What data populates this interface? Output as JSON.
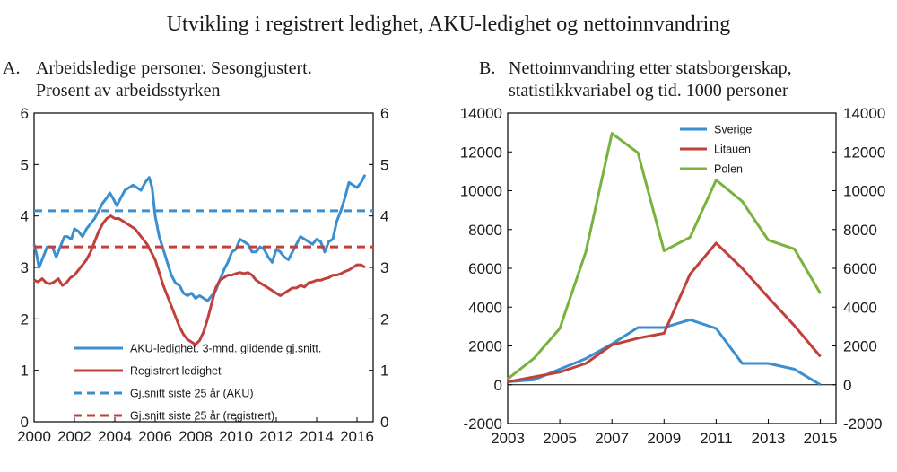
{
  "title": "Utvikling i registrert ledighet, AKU-ledighet og nettoinnvandring",
  "colors": {
    "blue": "#3a8fd0",
    "red": "#c0413b",
    "green": "#79b33e"
  },
  "chart_data": [
    {
      "type": "line",
      "label": "A.",
      "title_lines": [
        "Arbeidsledige personer. Sesongjustert.",
        "Prosent av arbeidsstyrken"
      ],
      "x_tick_labels": [
        "2000",
        "2002",
        "2004",
        "2006",
        "2008",
        "2010",
        "2012",
        "2014",
        "2016"
      ],
      "x_tick_values": [
        2000,
        2002,
        2004,
        2006,
        2008,
        2010,
        2012,
        2014,
        2016
      ],
      "xlim": [
        2000,
        2016.8
      ],
      "ylim": [
        0,
        6
      ],
      "left_y_tick_labels": [
        "0",
        "1",
        "2",
        "3",
        "4",
        "5",
        "6"
      ],
      "right_y_tick_labels": [
        "0",
        "1",
        "2",
        "3",
        "4",
        "5",
        "6"
      ],
      "y_tick_values": [
        0,
        1,
        2,
        3,
        4,
        5,
        6
      ],
      "legend_position": "bottom-center",
      "series": [
        {
          "name": "AKU-ledighet. 3-mnd. glidende gj.snitt.",
          "color_key": "blue",
          "dash": false,
          "x": [
            2000.0,
            2000.1,
            2000.25,
            2000.45,
            2000.65,
            2000.9,
            2001.1,
            2001.3,
            2001.5,
            2001.65,
            2001.85,
            2002.0,
            2002.2,
            2002.4,
            2002.6,
            2002.8,
            2003.0,
            2003.2,
            2003.4,
            2003.6,
            2003.75,
            2003.9,
            2004.1,
            2004.3,
            2004.5,
            2004.7,
            2004.9,
            2005.1,
            2005.3,
            2005.5,
            2005.7,
            2005.85,
            2006.0,
            2006.2,
            2006.4,
            2006.6,
            2006.8,
            2007.0,
            2007.2,
            2007.4,
            2007.6,
            2007.8,
            2008.0,
            2008.2,
            2008.4,
            2008.6,
            2008.8,
            2009.0,
            2009.2,
            2009.4,
            2009.6,
            2009.8,
            2010.0,
            2010.2,
            2010.4,
            2010.6,
            2010.8,
            2011.0,
            2011.2,
            2011.4,
            2011.6,
            2011.8,
            2012.0,
            2012.2,
            2012.4,
            2012.6,
            2012.8,
            2013.0,
            2013.2,
            2013.4,
            2013.6,
            2013.8,
            2014.0,
            2014.2,
            2014.4,
            2014.6,
            2014.8,
            2015.0,
            2015.2,
            2015.4,
            2015.6,
            2015.8,
            2016.0,
            2016.2,
            2016.4
          ],
          "y": [
            3.45,
            3.3,
            3.0,
            3.2,
            3.4,
            3.4,
            3.2,
            3.4,
            3.6,
            3.6,
            3.55,
            3.75,
            3.7,
            3.6,
            3.75,
            3.85,
            3.95,
            4.1,
            4.25,
            4.35,
            4.45,
            4.35,
            4.2,
            4.35,
            4.5,
            4.55,
            4.6,
            4.55,
            4.5,
            4.65,
            4.75,
            4.55,
            4.0,
            3.6,
            3.35,
            3.1,
            2.85,
            2.7,
            2.65,
            2.5,
            2.45,
            2.5,
            2.4,
            2.45,
            2.4,
            2.35,
            2.45,
            2.55,
            2.75,
            2.95,
            3.1,
            3.3,
            3.35,
            3.55,
            3.5,
            3.45,
            3.3,
            3.3,
            3.4,
            3.35,
            3.2,
            3.1,
            3.35,
            3.3,
            3.2,
            3.15,
            3.3,
            3.45,
            3.6,
            3.55,
            3.5,
            3.45,
            3.55,
            3.5,
            3.3,
            3.5,
            3.55,
            3.9,
            4.1,
            4.35,
            4.65,
            4.6,
            4.55,
            4.65,
            4.8
          ]
        },
        {
          "name": "Registrert ledighet",
          "color_key": "red",
          "dash": false,
          "x": [
            2000.0,
            2000.2,
            2000.4,
            2000.6,
            2000.8,
            2001.0,
            2001.2,
            2001.4,
            2001.6,
            2001.8,
            2002.0,
            2002.2,
            2002.4,
            2002.6,
            2002.8,
            2003.0,
            2003.2,
            2003.4,
            2003.6,
            2003.8,
            2004.0,
            2004.2,
            2004.4,
            2004.6,
            2004.8,
            2005.0,
            2005.2,
            2005.4,
            2005.6,
            2005.8,
            2006.0,
            2006.2,
            2006.4,
            2006.6,
            2006.8,
            2007.0,
            2007.2,
            2007.4,
            2007.6,
            2007.8,
            2008.0,
            2008.2,
            2008.4,
            2008.6,
            2008.8,
            2009.0,
            2009.2,
            2009.4,
            2009.6,
            2009.8,
            2010.0,
            2010.2,
            2010.4,
            2010.6,
            2010.8,
            2011.0,
            2011.2,
            2011.4,
            2011.6,
            2011.8,
            2012.0,
            2012.2,
            2012.4,
            2012.6,
            2012.8,
            2013.0,
            2013.2,
            2013.4,
            2013.6,
            2013.8,
            2014.0,
            2014.2,
            2014.4,
            2014.6,
            2014.8,
            2015.0,
            2015.2,
            2015.4,
            2015.6,
            2015.8,
            2016.0,
            2016.2,
            2016.4
          ],
          "y": [
            2.75,
            2.72,
            2.78,
            2.7,
            2.68,
            2.72,
            2.78,
            2.65,
            2.7,
            2.8,
            2.85,
            2.95,
            3.05,
            3.15,
            3.3,
            3.5,
            3.7,
            3.85,
            3.95,
            4.0,
            3.95,
            3.95,
            3.9,
            3.85,
            3.8,
            3.75,
            3.65,
            3.55,
            3.45,
            3.3,
            3.15,
            2.9,
            2.65,
            2.45,
            2.25,
            2.05,
            1.85,
            1.7,
            1.6,
            1.55,
            1.5,
            1.58,
            1.75,
            2.0,
            2.3,
            2.6,
            2.75,
            2.8,
            2.85,
            2.85,
            2.88,
            2.9,
            2.88,
            2.9,
            2.85,
            2.75,
            2.7,
            2.65,
            2.6,
            2.55,
            2.5,
            2.45,
            2.5,
            2.55,
            2.6,
            2.6,
            2.65,
            2.62,
            2.7,
            2.72,
            2.75,
            2.75,
            2.78,
            2.8,
            2.85,
            2.85,
            2.88,
            2.92,
            2.95,
            3.0,
            3.05,
            3.05,
            3.0
          ]
        },
        {
          "name": "Gj.snitt siste 25 år (AKU)",
          "color_key": "blue",
          "dash": true,
          "x": [
            2000.0,
            2016.8
          ],
          "y": [
            4.1,
            4.1
          ]
        },
        {
          "name": "Gj.snitt siste 25 år (registrert)",
          "color_key": "red",
          "dash": true,
          "x": [
            2000.0,
            2016.8
          ],
          "y": [
            3.4,
            3.4
          ]
        }
      ]
    },
    {
      "type": "line",
      "label": "B.",
      "title_lines": [
        "Nettoinnvandring etter statsborgerskap,",
        "statistikkvariabel og tid. 1000 personer"
      ],
      "x_tick_labels": [
        "2003",
        "2005",
        "2007",
        "2009",
        "2011",
        "2013",
        "2015"
      ],
      "x_tick_values": [
        2003,
        2005,
        2007,
        2009,
        2011,
        2013,
        2015
      ],
      "xlim": [
        2003,
        2015.6
      ],
      "ylim": [
        -2000,
        14000
      ],
      "left_y_tick_labels": [
        "-2000",
        "0",
        "2000",
        "4000",
        "6000",
        "8000",
        "10000",
        "12000",
        "14000"
      ],
      "right_y_tick_labels": [
        "-2000",
        "0",
        "2000",
        "4000",
        "6000",
        "8000",
        "10000",
        "12000",
        "14000"
      ],
      "y_tick_values": [
        -2000,
        0,
        2000,
        4000,
        6000,
        8000,
        10000,
        12000,
        14000
      ],
      "legend_position": "top-center",
      "series": [
        {
          "name": "Sverige",
          "color_key": "blue",
          "x": [
            2003,
            2004,
            2005,
            2006,
            2007,
            2008,
            2009,
            2010,
            2011,
            2012,
            2013,
            2014,
            2015
          ],
          "y": [
            150,
            250,
            800,
            1350,
            2100,
            2950,
            2950,
            3350,
            2900,
            1100,
            1100,
            800,
            0
          ]
        },
        {
          "name": "Litauen",
          "color_key": "red",
          "x": [
            2003,
            2004,
            2005,
            2006,
            2007,
            2008,
            2009,
            2010,
            2011,
            2012,
            2013,
            2014,
            2015
          ],
          "y": [
            150,
            400,
            650,
            1100,
            2050,
            2400,
            2650,
            5700,
            7300,
            6000,
            4500,
            3050,
            1450
          ]
        },
        {
          "name": "Polen",
          "color_key": "green",
          "x": [
            2003,
            2004,
            2005,
            2006,
            2007,
            2008,
            2009,
            2010,
            2011,
            2012,
            2013,
            2014,
            2015
          ],
          "y": [
            300,
            1350,
            2900,
            6850,
            12950,
            11950,
            6900,
            7600,
            10550,
            9450,
            7450,
            7000,
            4700
          ]
        }
      ]
    }
  ]
}
